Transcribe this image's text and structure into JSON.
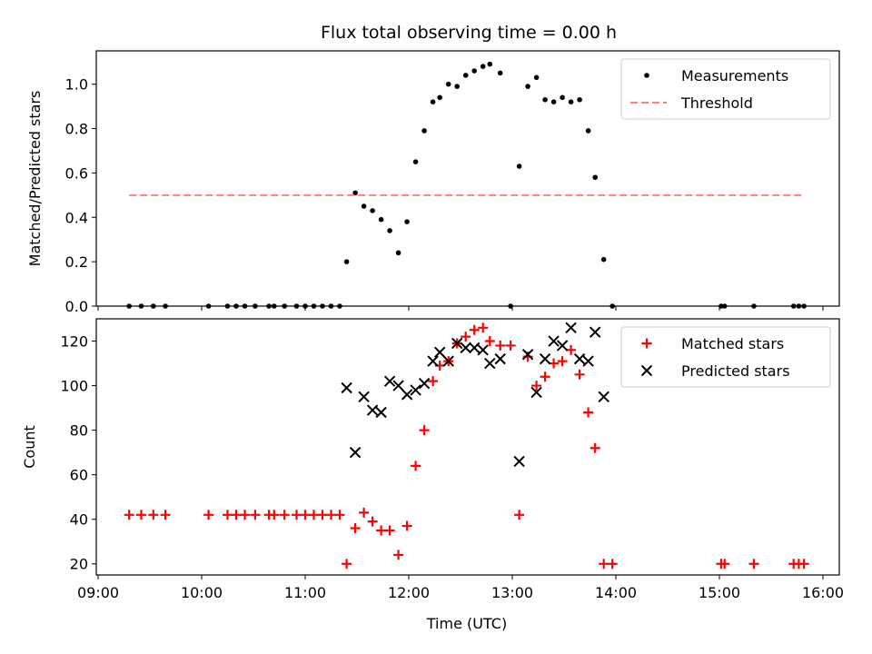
{
  "figure": {
    "title": "Flux total observing time = 0.00 h",
    "xlabel": "Time (UTC)"
  },
  "chart_data": [
    {
      "type": "scatter",
      "title": "Flux total observing time = 0.00 h",
      "xlabel": "",
      "ylabel": "Matched/Predicted stars",
      "xlim": [
        "09:00",
        "16:00"
      ],
      "ylim": [
        0,
        1.15
      ],
      "yticks": [
        0.0,
        0.2,
        0.4,
        0.6,
        0.8,
        1.0
      ],
      "ytick_labels": [
        "0.0",
        "0.2",
        "0.4",
        "0.6",
        "0.8",
        "1.0"
      ],
      "legend_position": "upper right",
      "series": [
        {
          "name": "Measurements",
          "marker": "dot",
          "color": "#000000",
          "points": [
            [
              "09:18",
              0.0
            ],
            [
              "09:25",
              0.0
            ],
            [
              "09:32",
              0.0
            ],
            [
              "09:39",
              0.0
            ],
            [
              "10:04",
              0.0
            ],
            [
              "10:15",
              0.0
            ],
            [
              "10:20",
              0.0
            ],
            [
              "10:25",
              0.0
            ],
            [
              "10:31",
              0.0
            ],
            [
              "10:39",
              0.0
            ],
            [
              "10:42",
              0.0
            ],
            [
              "10:48",
              0.0
            ],
            [
              "10:55",
              0.0
            ],
            [
              "11:00",
              0.0
            ],
            [
              "11:05",
              0.0
            ],
            [
              "11:10",
              0.0
            ],
            [
              "11:15",
              0.0
            ],
            [
              "11:20",
              0.0
            ],
            [
              "11:24",
              0.2
            ],
            [
              "11:29",
              0.51
            ],
            [
              "11:34",
              0.45
            ],
            [
              "11:39",
              0.43
            ],
            [
              "11:44",
              0.39
            ],
            [
              "11:49",
              0.34
            ],
            [
              "11:54",
              0.24
            ],
            [
              "11:59",
              0.38
            ],
            [
              "12:04",
              0.65
            ],
            [
              "12:09",
              0.79
            ],
            [
              "12:14",
              0.92
            ],
            [
              "12:18",
              0.94
            ],
            [
              "12:23",
              1.0
            ],
            [
              "12:28",
              0.99
            ],
            [
              "12:33",
              1.04
            ],
            [
              "12:38",
              1.06
            ],
            [
              "12:43",
              1.08
            ],
            [
              "12:47",
              1.09
            ],
            [
              "12:53",
              1.05
            ],
            [
              "12:59",
              0.0
            ],
            [
              "13:04",
              0.63
            ],
            [
              "13:09",
              0.99
            ],
            [
              "13:14",
              1.03
            ],
            [
              "13:19",
              0.93
            ],
            [
              "13:24",
              0.92
            ],
            [
              "13:29",
              0.94
            ],
            [
              "13:34",
              0.92
            ],
            [
              "13:39",
              0.93
            ],
            [
              "13:44",
              0.79
            ],
            [
              "13:48",
              0.58
            ],
            [
              "13:53",
              0.21
            ],
            [
              "13:58",
              0.0
            ],
            [
              "15:01",
              0.0
            ],
            [
              "15:03",
              0.0
            ],
            [
              "15:20",
              0.0
            ],
            [
              "15:43",
              0.0
            ],
            [
              "15:46",
              0.0
            ],
            [
              "15:49",
              0.0
            ]
          ]
        },
        {
          "name": "Threshold",
          "marker": "dashed-line",
          "color": "#ff7f7f",
          "points": [
            [
              "09:18",
              0.5
            ],
            [
              "15:49",
              0.5
            ]
          ]
        }
      ]
    },
    {
      "type": "scatter",
      "title": "",
      "xlabel": "Time (UTC)",
      "ylabel": "Count",
      "xlim": [
        "09:00",
        "16:00"
      ],
      "ylim": [
        15,
        130
      ],
      "yticks": [
        20,
        40,
        60,
        80,
        100,
        120
      ],
      "ytick_labels": [
        "20",
        "40",
        "60",
        "80",
        "100",
        "120"
      ],
      "xticks": [
        "09:00",
        "10:00",
        "11:00",
        "12:00",
        "13:00",
        "14:00",
        "15:00",
        "16:00"
      ],
      "xtick_labels": [
        "09:00",
        "10:00",
        "11:00",
        "12:00",
        "13:00",
        "14:00",
        "15:00",
        "16:00"
      ],
      "legend_position": "upper right",
      "series": [
        {
          "name": "Matched stars",
          "marker": "plus",
          "color": "#ff0000",
          "points": [
            [
              "09:18",
              42
            ],
            [
              "09:25",
              42
            ],
            [
              "09:32",
              42
            ],
            [
              "09:39",
              42
            ],
            [
              "10:04",
              42
            ],
            [
              "10:15",
              42
            ],
            [
              "10:20",
              42
            ],
            [
              "10:25",
              42
            ],
            [
              "10:31",
              42
            ],
            [
              "10:39",
              42
            ],
            [
              "10:42",
              42
            ],
            [
              "10:48",
              42
            ],
            [
              "10:55",
              42
            ],
            [
              "11:00",
              42
            ],
            [
              "11:05",
              42
            ],
            [
              "11:10",
              42
            ],
            [
              "11:15",
              42
            ],
            [
              "11:20",
              42
            ],
            [
              "11:24",
              20
            ],
            [
              "11:29",
              36
            ],
            [
              "11:34",
              43
            ],
            [
              "11:39",
              39
            ],
            [
              "11:44",
              35
            ],
            [
              "11:49",
              35
            ],
            [
              "11:54",
              24
            ],
            [
              "11:59",
              37
            ],
            [
              "12:04",
              64
            ],
            [
              "12:09",
              80
            ],
            [
              "12:14",
              102
            ],
            [
              "12:18",
              109
            ],
            [
              "12:23",
              111
            ],
            [
              "12:28",
              119
            ],
            [
              "12:33",
              122
            ],
            [
              "12:38",
              125
            ],
            [
              "12:43",
              126
            ],
            [
              "12:47",
              120
            ],
            [
              "12:53",
              118
            ],
            [
              "12:59",
              118
            ],
            [
              "13:04",
              42
            ],
            [
              "13:09",
              113
            ],
            [
              "13:14",
              100
            ],
            [
              "13:19",
              104
            ],
            [
              "13:24",
              110
            ],
            [
              "13:29",
              111
            ],
            [
              "13:34",
              116
            ],
            [
              "13:39",
              105
            ],
            [
              "13:44",
              88
            ],
            [
              "13:48",
              72
            ],
            [
              "13:53",
              20
            ],
            [
              "13:58",
              20
            ],
            [
              "15:01",
              20
            ],
            [
              "15:03",
              20
            ],
            [
              "15:20",
              20
            ],
            [
              "15:43",
              20
            ],
            [
              "15:46",
              20
            ],
            [
              "15:49",
              20
            ]
          ]
        },
        {
          "name": "Predicted stars",
          "marker": "x",
          "color": "#000000",
          "points": [
            [
              "11:24",
              99
            ],
            [
              "11:29",
              70
            ],
            [
              "11:34",
              95
            ],
            [
              "11:39",
              89
            ],
            [
              "11:44",
              88
            ],
            [
              "11:49",
              102
            ],
            [
              "11:54",
              100
            ],
            [
              "11:59",
              96
            ],
            [
              "12:04",
              98
            ],
            [
              "12:09",
              101
            ],
            [
              "12:14",
              111
            ],
            [
              "12:18",
              115
            ],
            [
              "12:23",
              111
            ],
            [
              "12:28",
              119
            ],
            [
              "12:33",
              117
            ],
            [
              "12:38",
              117
            ],
            [
              "12:43",
              116
            ],
            [
              "12:47",
              110
            ],
            [
              "12:53",
              112
            ],
            [
              "13:04",
              66
            ],
            [
              "13:09",
              114
            ],
            [
              "13:14",
              97
            ],
            [
              "13:19",
              112
            ],
            [
              "13:24",
              120
            ],
            [
              "13:29",
              118
            ],
            [
              "13:34",
              126
            ],
            [
              "13:39",
              112
            ],
            [
              "13:44",
              111
            ],
            [
              "13:48",
              124
            ],
            [
              "13:53",
              95
            ]
          ]
        }
      ]
    }
  ]
}
